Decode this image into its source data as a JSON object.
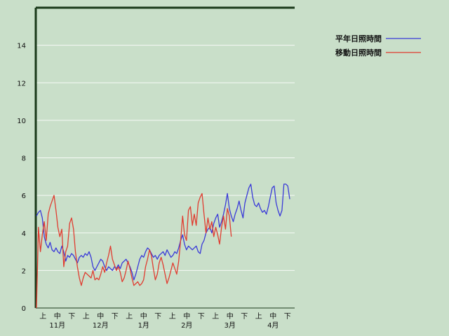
{
  "chart_data": {
    "type": "line",
    "title": "",
    "xlabel": "",
    "ylabel": "",
    "ylim": [
      0,
      16
    ],
    "yticks": [
      0,
      2,
      4,
      6,
      8,
      10,
      12,
      14
    ],
    "grid": "horizontal",
    "legend_position": "top-right",
    "x_period_labels": [
      "上",
      "中",
      "下",
      "上",
      "中",
      "下",
      "上",
      "中",
      "下",
      "上",
      "中",
      "下",
      "上",
      "中",
      "下",
      "上",
      "中",
      "下"
    ],
    "x_month_labels": [
      "11月",
      "12月",
      "1月",
      "2月",
      "3月",
      "4月"
    ],
    "series": [
      {
        "name": "平年日照時間",
        "color": "#3a3ad8",
        "values": [
          4.9,
          5.1,
          5.2,
          4.8,
          3.8,
          3.4,
          3.2,
          3.5,
          3.1,
          3.0,
          3.2,
          3.0,
          2.9,
          3.3,
          3.0,
          2.5,
          2.8,
          2.7,
          2.9,
          2.8,
          2.6,
          2.4,
          2.7,
          2.8,
          2.7,
          2.9,
          2.8,
          3.0,
          2.7,
          2.2,
          2.0,
          2.2,
          2.4,
          2.6,
          2.5,
          2.2,
          2.0,
          2.2,
          2.1,
          2.0,
          2.2,
          2.1,
          2.3,
          2.1,
          2.4,
          2.5,
          2.6,
          2.4,
          2.2,
          1.9,
          1.5,
          1.8,
          2.2,
          2.6,
          2.8,
          2.7,
          3.0,
          3.2,
          3.1,
          2.9,
          2.7,
          2.8,
          2.6,
          2.8,
          2.9,
          3.0,
          2.8,
          3.1,
          2.9,
          2.7,
          2.8,
          3.0,
          2.9,
          3.2,
          3.6,
          3.9,
          3.4,
          3.1,
          3.3,
          3.2,
          3.1,
          3.2,
          3.3,
          3.0,
          2.9,
          3.4,
          3.6,
          4.0,
          4.2,
          4.3,
          4.0,
          4.5,
          4.8,
          5.0,
          4.3,
          4.6,
          5.0,
          5.5,
          6.1,
          5.3,
          4.9,
          4.6,
          5.0,
          5.3,
          5.7,
          5.2,
          4.8,
          5.6,
          6.0,
          6.4,
          6.6,
          5.9,
          5.5,
          5.4,
          5.6,
          5.3,
          5.1,
          5.2,
          5.0,
          5.4,
          5.9,
          6.4,
          6.5,
          5.6,
          5.2,
          4.9,
          5.2,
          6.6,
          6.6,
          6.5,
          5.8
        ]
      },
      {
        "name": "移動日照時間",
        "color": "#e03c30",
        "values": [
          0,
          4.3,
          3.0,
          3.9,
          4.6,
          3.6,
          5.0,
          5.4,
          5.7,
          6.0,
          5.2,
          4.3,
          3.8,
          4.2,
          2.2,
          3.0,
          3.3,
          4.5,
          4.8,
          4.2,
          3.0,
          2.2,
          1.6,
          1.2,
          1.6,
          1.9,
          1.8,
          1.7,
          1.6,
          2.0,
          1.5,
          1.6,
          1.5,
          1.8,
          2.2,
          1.9,
          2.4,
          2.8,
          3.3,
          2.6,
          2.3,
          2.0,
          2.2,
          1.9,
          1.4,
          1.6,
          2.0,
          2.5,
          2.1,
          1.6,
          1.2,
          1.3,
          1.4,
          1.2,
          1.3,
          1.5,
          2.2,
          2.6,
          3.1,
          2.8,
          2.1,
          1.5,
          1.8,
          2.4,
          2.7,
          2.3,
          1.8,
          1.3,
          1.6,
          2.0,
          2.4,
          2.1,
          1.8,
          2.5,
          3.6,
          4.9,
          3.9,
          3.6,
          5.2,
          5.4,
          4.4,
          5.0,
          4.4,
          5.6,
          5.9,
          6.1,
          5.0,
          4.0,
          4.8,
          4.2,
          4.6,
          3.8,
          4.3,
          3.9,
          3.4,
          4.3,
          4.9,
          4.2,
          5.3,
          4.9,
          3.8
        ]
      }
    ]
  }
}
